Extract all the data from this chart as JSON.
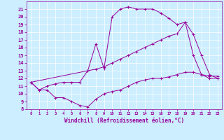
{
  "xlabel": "Windchill (Refroidissement éolien,°C)",
  "bg_color": "#cceeff",
  "line_color": "#990099",
  "xlim": [
    -0.5,
    23.5
  ],
  "ylim": [
    8,
    22
  ],
  "xticks": [
    0,
    1,
    2,
    3,
    4,
    5,
    6,
    7,
    8,
    9,
    10,
    11,
    12,
    13,
    14,
    15,
    16,
    17,
    18,
    19,
    20,
    21,
    22,
    23
  ],
  "yticks": [
    8,
    9,
    10,
    11,
    12,
    13,
    14,
    15,
    16,
    17,
    18,
    19,
    20,
    21
  ],
  "series1_x": [
    0,
    1,
    2,
    3,
    4,
    5,
    6,
    7,
    8,
    9,
    10,
    11,
    12,
    13,
    14,
    15,
    16,
    17,
    18,
    19,
    20,
    21,
    22,
    23
  ],
  "series1_y": [
    11.5,
    10.5,
    10.5,
    9.5,
    9.5,
    9.0,
    8.5,
    8.3,
    9.3,
    10.0,
    10.3,
    10.5,
    11.0,
    11.5,
    11.8,
    12.0,
    12.0,
    12.2,
    12.5,
    12.8,
    12.8,
    12.5,
    12.3,
    12.3
  ],
  "series2_x": [
    0,
    1,
    2,
    3,
    4,
    5,
    6,
    7,
    8,
    9,
    10,
    11,
    12,
    13,
    14,
    15,
    16,
    17,
    18,
    19,
    20,
    21,
    22,
    23
  ],
  "series2_y": [
    11.5,
    10.5,
    11.0,
    11.3,
    11.5,
    11.5,
    11.5,
    13.0,
    16.5,
    13.3,
    20.0,
    21.0,
    21.3,
    21.0,
    21.0,
    21.0,
    20.5,
    19.8,
    19.0,
    19.3,
    17.7,
    15.0,
    12.5,
    12.0
  ],
  "series3_x": [
    0,
    7,
    8,
    9,
    10,
    11,
    12,
    13,
    14,
    15,
    16,
    17,
    18,
    19,
    20,
    21,
    22,
    23
  ],
  "series3_y": [
    11.5,
    13.0,
    13.2,
    13.5,
    14.0,
    14.5,
    15.0,
    15.5,
    16.0,
    16.5,
    17.0,
    17.5,
    17.8,
    19.3,
    15.0,
    12.5,
    12.0,
    12.0
  ]
}
